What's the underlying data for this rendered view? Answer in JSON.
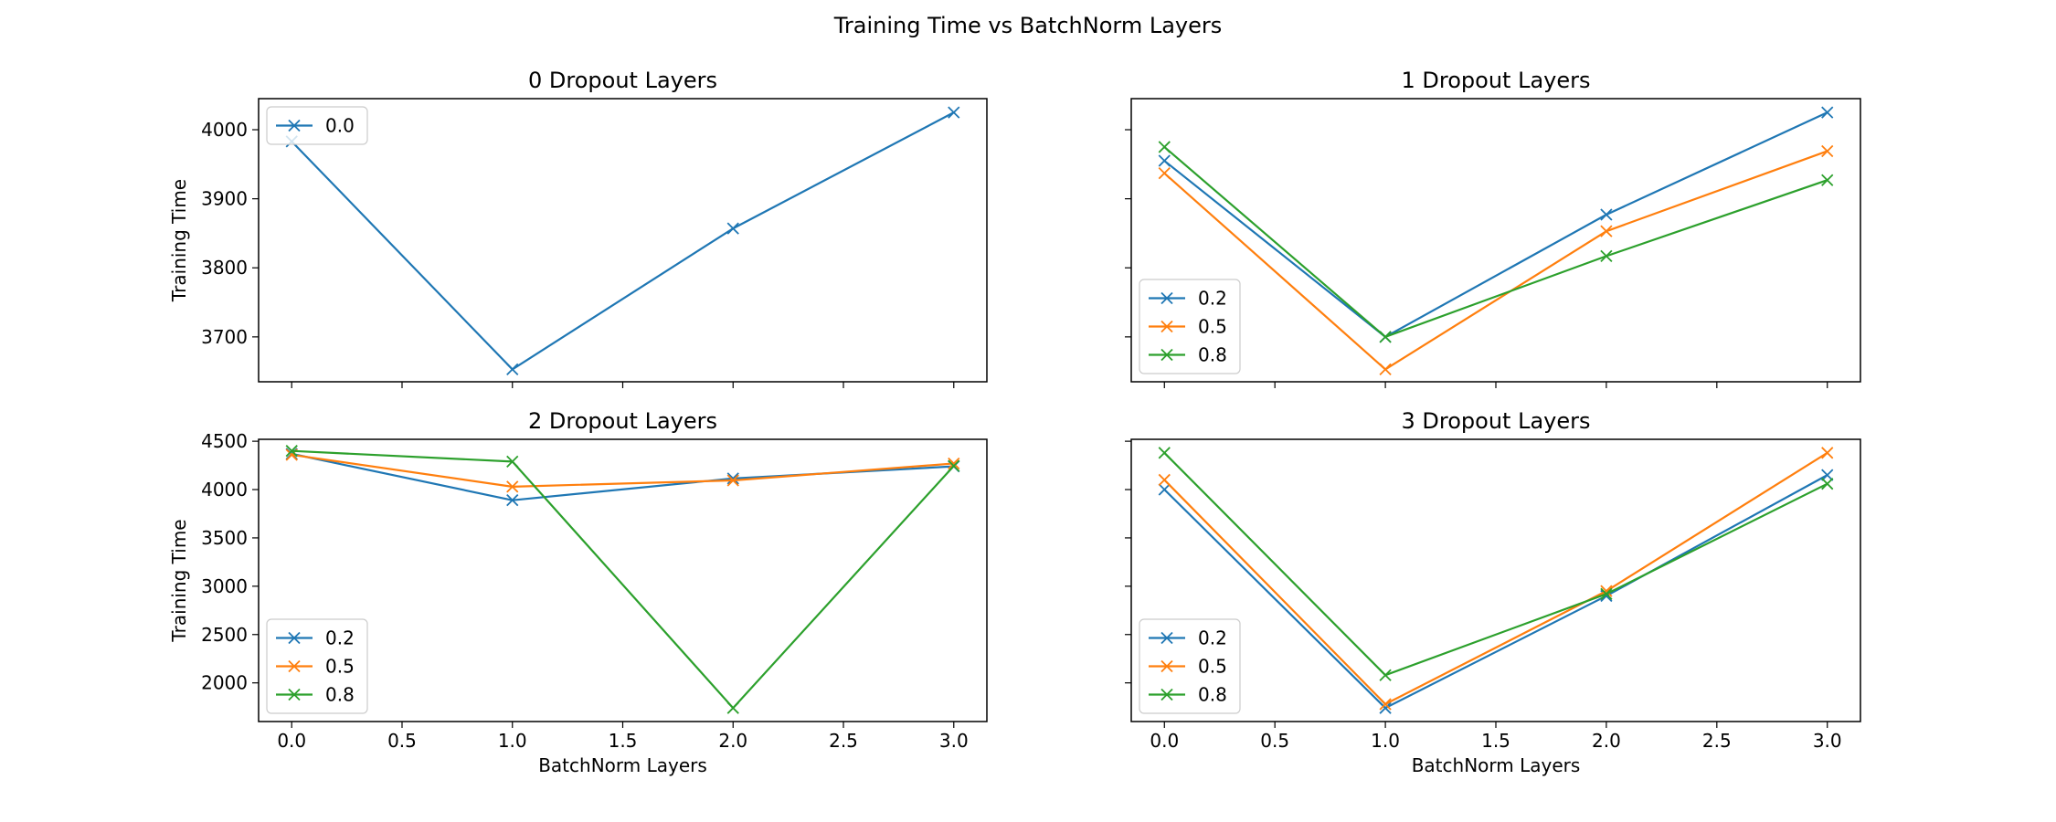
{
  "figure": {
    "suptitle": "Training Time vs BatchNorm Layers"
  },
  "colors": {
    "0.2": "#1f77b4",
    "0.5": "#ff7f0e",
    "0.8": "#2ca02c",
    "0.0": "#1f77b4"
  },
  "chart_data": [
    {
      "type": "line",
      "title": "0 Dropout Layers",
      "xlabel": "",
      "ylabel": "Training Time",
      "x": [
        0,
        1,
        2,
        3
      ],
      "xlim": [
        -0.15,
        3.15
      ],
      "ylim": [
        3635,
        4045
      ],
      "xticks": [
        "",
        "",
        "",
        "",
        "",
        "",
        ""
      ],
      "yticks": [
        3700,
        3800,
        3900,
        4000
      ],
      "ytick_labels": [
        "3700",
        "3800",
        "3900",
        "4000"
      ],
      "legend": "upper left",
      "series": [
        {
          "name": "0.0",
          "color": "#1f77b4",
          "marker": "x",
          "values": [
            3983,
            3653,
            3857,
            4025
          ]
        }
      ]
    },
    {
      "type": "line",
      "title": "1 Dropout Layers",
      "xlabel": "",
      "ylabel": "",
      "x": [
        0,
        1,
        2,
        3
      ],
      "xlim": [
        -0.15,
        3.15
      ],
      "ylim": [
        3635,
        4045
      ],
      "xticks": [
        "",
        "",
        "",
        "",
        "",
        "",
        ""
      ],
      "yticks": [
        3700,
        3800,
        3900,
        4000
      ],
      "ytick_labels": [
        "",
        "",
        "",
        ""
      ],
      "legend": "lower left",
      "series": [
        {
          "name": "0.2",
          "color": "#1f77b4",
          "marker": "x",
          "values": [
            3955,
            3700,
            3877,
            4025
          ]
        },
        {
          "name": "0.5",
          "color": "#ff7f0e",
          "marker": "x",
          "values": [
            3937,
            3653,
            3853,
            3969
          ]
        },
        {
          "name": "0.8",
          "color": "#2ca02c",
          "marker": "x",
          "values": [
            3975,
            3700,
            3817,
            3927
          ]
        }
      ]
    },
    {
      "type": "line",
      "title": "2 Dropout Layers",
      "xlabel": "BatchNorm Layers",
      "ylabel": "Training Time",
      "x": [
        0,
        1,
        2,
        3
      ],
      "xlim": [
        -0.15,
        3.15
      ],
      "ylim": [
        1600,
        4520
      ],
      "xticks": [
        "0.0",
        "0.5",
        "1.0",
        "1.5",
        "2.0",
        "2.5",
        "3.0"
      ],
      "yticks": [
        2000,
        2500,
        3000,
        3500,
        4000,
        4500
      ],
      "ytick_labels": [
        "2000",
        "2500",
        "3000",
        "3500",
        "4000",
        "4500"
      ],
      "legend": "lower left",
      "series": [
        {
          "name": "0.2",
          "color": "#1f77b4",
          "marker": "x",
          "values": [
            4370,
            3890,
            4115,
            4240
          ]
        },
        {
          "name": "0.5",
          "color": "#ff7f0e",
          "marker": "x",
          "values": [
            4360,
            4030,
            4095,
            4270
          ]
        },
        {
          "name": "0.8",
          "color": "#2ca02c",
          "marker": "x",
          "values": [
            4400,
            4290,
            1740,
            4245
          ]
        }
      ]
    },
    {
      "type": "line",
      "title": "3 Dropout Layers",
      "xlabel": "BatchNorm Layers",
      "ylabel": "",
      "x": [
        0,
        1,
        2,
        3
      ],
      "xlim": [
        -0.15,
        3.15
      ],
      "ylim": [
        1600,
        4520
      ],
      "xticks": [
        "0.0",
        "0.5",
        "1.0",
        "1.5",
        "2.0",
        "2.5",
        "3.0"
      ],
      "yticks": [
        2000,
        2500,
        3000,
        3500,
        4000,
        4500
      ],
      "ytick_labels": [
        "",
        "",
        "",
        "",
        "",
        ""
      ],
      "legend": "lower left",
      "series": [
        {
          "name": "0.2",
          "color": "#1f77b4",
          "marker": "x",
          "values": [
            4000,
            1740,
            2900,
            4150
          ]
        },
        {
          "name": "0.5",
          "color": "#ff7f0e",
          "marker": "x",
          "values": [
            4100,
            1780,
            2950,
            4380
          ]
        },
        {
          "name": "0.8",
          "color": "#2ca02c",
          "marker": "x",
          "values": [
            4380,
            2080,
            2920,
            4060
          ]
        }
      ]
    }
  ]
}
